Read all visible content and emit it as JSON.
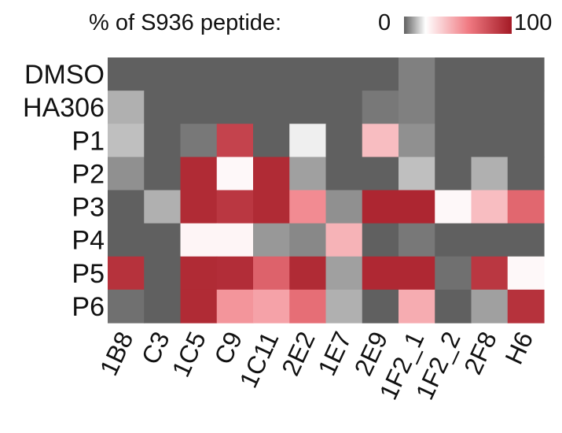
{
  "chart_data": {
    "type": "heatmap",
    "legend": {
      "title": "% of S936 peptide:",
      "min_label": "0",
      "max_label": "100",
      "min": 0,
      "max": 100,
      "colors": [
        "#606060",
        "#ffffff",
        "#f07a82",
        "#a31a25"
      ]
    },
    "rows": [
      "DMSO",
      "HA306",
      "P1",
      "P2",
      "P3",
      "P4",
      "P5",
      "P6"
    ],
    "columns": [
      "1B8",
      "C3",
      "1C5",
      "C9",
      "1C11",
      "2E2",
      "1E7",
      "2E9",
      "1F2_1",
      "1F2_2",
      "2F8",
      "H6"
    ],
    "values": [
      [
        0,
        0,
        0,
        0,
        0,
        0,
        0,
        0,
        4,
        0,
        0,
        0
      ],
      [
        10,
        0,
        0,
        0,
        0,
        0,
        0,
        3,
        4,
        0,
        0,
        0
      ],
      [
        12,
        0,
        3,
        83,
        0,
        18,
        0,
        40,
        6,
        0,
        0,
        0
      ],
      [
        6,
        0,
        93,
        22,
        93,
        8,
        0,
        0,
        12,
        0,
        10,
        0
      ],
      [
        0,
        10,
        93,
        88,
        93,
        55,
        6,
        95,
        95,
        22,
        40,
        68
      ],
      [
        0,
        0,
        23,
        23,
        7,
        5,
        43,
        0,
        3,
        0,
        0,
        0
      ],
      [
        90,
        0,
        93,
        92,
        70,
        93,
        8,
        94,
        94,
        2,
        88,
        22
      ],
      [
        2,
        0,
        93,
        52,
        48,
        65,
        10,
        0,
        45,
        0,
        8,
        90
      ]
    ]
  }
}
